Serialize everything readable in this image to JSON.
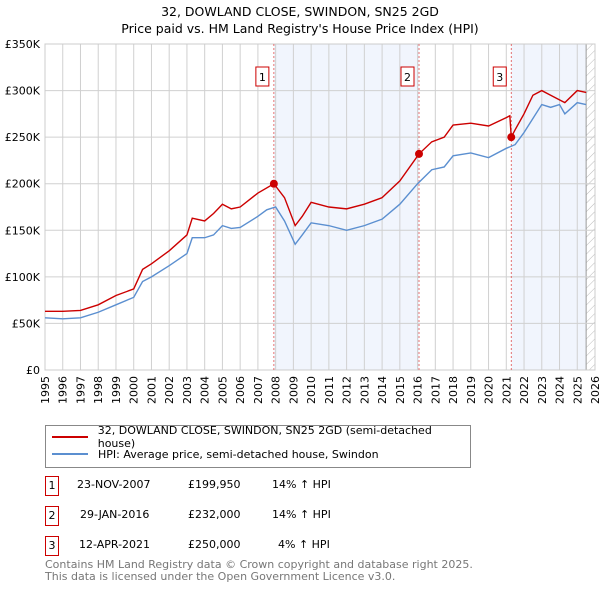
{
  "chart_data": {
    "type": "line",
    "title": "32, DOWLAND CLOSE, SWINDON, SN25 2GD",
    "subtitle": "Price paid vs. HM Land Registry's House Price Index (HPI)",
    "xlim": [
      1995,
      2026
    ],
    "ylim": [
      0,
      350000
    ],
    "y_ticks": [
      {
        "v": 0,
        "label": "£0"
      },
      {
        "v": 50000,
        "label": "£50K"
      },
      {
        "v": 100000,
        "label": "£100K"
      },
      {
        "v": 150000,
        "label": "£150K"
      },
      {
        "v": 200000,
        "label": "£200K"
      },
      {
        "v": 250000,
        "label": "£250K"
      },
      {
        "v": 300000,
        "label": "£300K"
      },
      {
        "v": 350000,
        "label": "£350K"
      }
    ],
    "x_ticks": [
      "1995",
      "1996",
      "1997",
      "1998",
      "1999",
      "2000",
      "2001",
      "2002",
      "2003",
      "2004",
      "2005",
      "2006",
      "2007",
      "2008",
      "2009",
      "2010",
      "2011",
      "2012",
      "2013",
      "2014",
      "2015",
      "2016",
      "2017",
      "2018",
      "2019",
      "2020",
      "2021",
      "2022",
      "2023",
      "2024",
      "2025",
      "2026"
    ],
    "grid": true,
    "series": [
      {
        "name": "32, DOWLAND CLOSE, SWINDON, SN25 2GD (semi-detached house)",
        "color": "#cc0000",
        "x": [
          1995,
          1996,
          1997,
          1998,
          1999,
          2000,
          2000.5,
          2001,
          2002,
          2003,
          2003.3,
          2004,
          2004.5,
          2005,
          2005.5,
          2006,
          2007,
          2007.9,
          2008.5,
          2009.1,
          2009.5,
          2010,
          2011,
          2012,
          2013,
          2014,
          2015,
          2016.08,
          2016.8,
          2017.5,
          2018,
          2019,
          2020,
          2021,
          2021.2,
          2021.28,
          2021.5,
          2022,
          2022.5,
          2023,
          2023.5,
          2024,
          2024.3,
          2025,
          2025.5
        ],
        "y": [
          63000,
          63000,
          64000,
          70000,
          80000,
          87000,
          108000,
          114000,
          128000,
          145000,
          163000,
          160000,
          168000,
          178000,
          173000,
          175000,
          190000,
          199950,
          185000,
          155000,
          165000,
          180000,
          175000,
          173000,
          178000,
          185000,
          203000,
          232000,
          245000,
          250000,
          263000,
          265000,
          262000,
          271000,
          273000,
          250000,
          258000,
          275000,
          295000,
          300000,
          295000,
          290000,
          287000,
          300000,
          298000
        ]
      },
      {
        "name": "HPI: Average price, semi-detached house, Swindon",
        "color": "#5b8fd0",
        "x": [
          1995,
          1996,
          1997,
          1998,
          1999,
          2000,
          2000.5,
          2001,
          2002,
          2003,
          2003.3,
          2004,
          2004.5,
          2005,
          2005.5,
          2006,
          2007,
          2007.5,
          2008,
          2008.5,
          2009.1,
          2009.5,
          2010,
          2011,
          2012,
          2013,
          2014,
          2015,
          2016,
          2016.8,
          2017.5,
          2018,
          2019,
          2020,
          2021,
          2021.5,
          2022,
          2022.5,
          2023,
          2023.5,
          2024,
          2024.3,
          2025,
          2025.5
        ],
        "y": [
          56000,
          55000,
          56000,
          62000,
          70000,
          78000,
          95000,
          100000,
          112000,
          125000,
          142000,
          142000,
          145000,
          155000,
          152000,
          153000,
          165000,
          172000,
          175000,
          160000,
          135000,
          145000,
          158000,
          155000,
          150000,
          155000,
          162000,
          178000,
          200000,
          215000,
          218000,
          230000,
          233000,
          228000,
          238000,
          242000,
          255000,
          270000,
          285000,
          282000,
          285000,
          275000,
          287000,
          285000
        ]
      }
    ],
    "sales": [
      {
        "n": "1",
        "x": 2007.9,
        "y": 199950,
        "date": "23-NOV-2007",
        "price": "£199,950",
        "hpi": "14% ↑ HPI"
      },
      {
        "n": "2",
        "x": 2016.08,
        "y": 232000,
        "date": "29-JAN-2016",
        "price": "£232,000",
        "hpi": "14% ↑ HPI"
      },
      {
        "n": "3",
        "x": 2021.28,
        "y": 250000,
        "date": "12-APR-2021",
        "price": "£250,000",
        "hpi": "4% ↑ HPI"
      }
    ],
    "data_end": 2025.5
  },
  "footer": {
    "line1": "Contains HM Land Registry data © Crown copyright and database right 2025.",
    "line2": "This data is licensed under the Open Government Licence v3.0."
  }
}
